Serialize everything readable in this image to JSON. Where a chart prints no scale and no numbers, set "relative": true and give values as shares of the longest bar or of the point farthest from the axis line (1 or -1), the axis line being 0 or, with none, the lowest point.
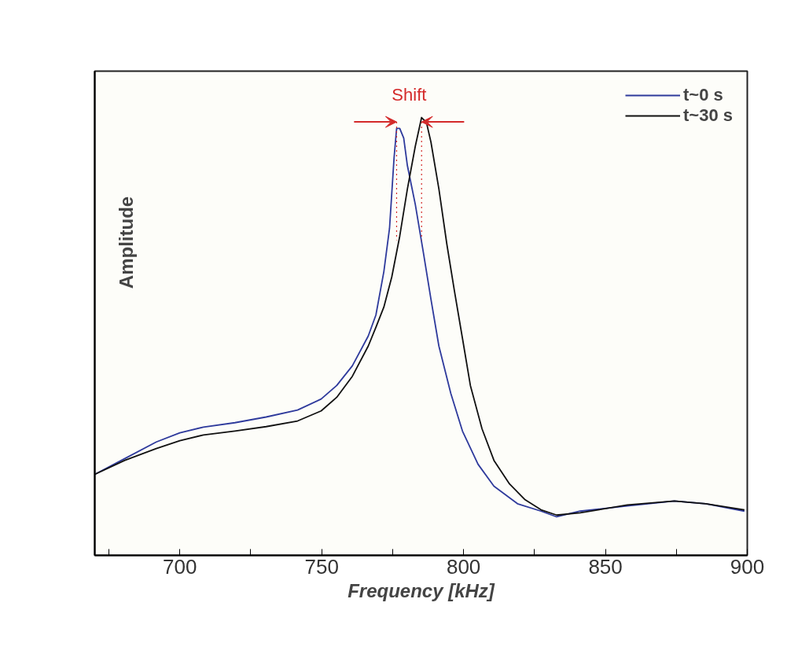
{
  "chart_data": {
    "type": "line",
    "relative": true,
    "xlabel": "Frequency [kHz]",
    "ylabel": "Amplitude",
    "xlim": [
      670,
      900
    ],
    "xticks": [
      {
        "value": 675,
        "label": null
      },
      700,
      {
        "value": 725,
        "label": null
      },
      750,
      {
        "value": 775,
        "label": null
      },
      800,
      {
        "value": 825,
        "label": null
      },
      850,
      {
        "value": 875,
        "label": null
      },
      900
    ],
    "series": [
      {
        "name": "t~0 s",
        "color": "#2e3a9c",
        "x": [
          670,
          680.6,
          691.7,
          700,
          708.3,
          719.4,
          730.4,
          741.5,
          749.8,
          755.3,
          760.8,
          766.4,
          769.1,
          771.9,
          773.9,
          775.5,
          776.4,
          777.5,
          778.9,
          780.2,
          783.0,
          785.8,
          788.5,
          791.3,
          795.5,
          799.6,
          805.1,
          810.7,
          819.0,
          827.3,
          832.8,
          841.1,
          857.7,
          874.3,
          885.4,
          899
        ],
        "values": [
          0.185,
          0.221,
          0.259,
          0.28,
          0.293,
          0.303,
          0.316,
          0.332,
          0.357,
          0.388,
          0.433,
          0.501,
          0.549,
          0.648,
          0.747,
          0.908,
          0.975,
          0.975,
          0.953,
          0.89,
          0.801,
          0.693,
          0.585,
          0.478,
          0.37,
          0.284,
          0.208,
          0.158,
          0.118,
          0.101,
          0.088,
          0.101,
          0.113,
          0.124,
          0.118,
          0.101
        ]
      },
      {
        "name": "t~30 s",
        "color": "#111111",
        "x": [
          670,
          680.6,
          691.7,
          700,
          708.3,
          719.4,
          730.4,
          741.5,
          749.8,
          755.3,
          760.8,
          766.4,
          769.1,
          771.9,
          774.7,
          777.5,
          780.2,
          783.0,
          785.2,
          786.9,
          788.5,
          791.3,
          794.1,
          796.8,
          799.6,
          802.4,
          806.5,
          810.7,
          816.2,
          821.7,
          827.3,
          832.8,
          841.1,
          857.7,
          874.3,
          885.4,
          899
        ],
        "values": [
          0.185,
          0.217,
          0.244,
          0.262,
          0.275,
          0.284,
          0.294,
          0.307,
          0.33,
          0.361,
          0.409,
          0.478,
          0.521,
          0.567,
          0.636,
          0.729,
          0.837,
          0.935,
          1.0,
          0.989,
          0.944,
          0.837,
          0.711,
          0.603,
          0.496,
          0.388,
          0.289,
          0.217,
          0.163,
          0.127,
          0.104,
          0.092,
          0.097,
          0.115,
          0.124,
          0.118,
          0.104
        ]
      }
    ],
    "annotations": [
      "Shift"
    ],
    "ref_lines": [
      {
        "axis": "x",
        "value": 776.4,
        "color": "#d42a2a",
        "line_style": "dotted"
      },
      {
        "axis": "x",
        "value": 785.2,
        "color": "#d42a2a",
        "line_style": "dotted"
      }
    ],
    "legend": "top right",
    "grid": false
  }
}
